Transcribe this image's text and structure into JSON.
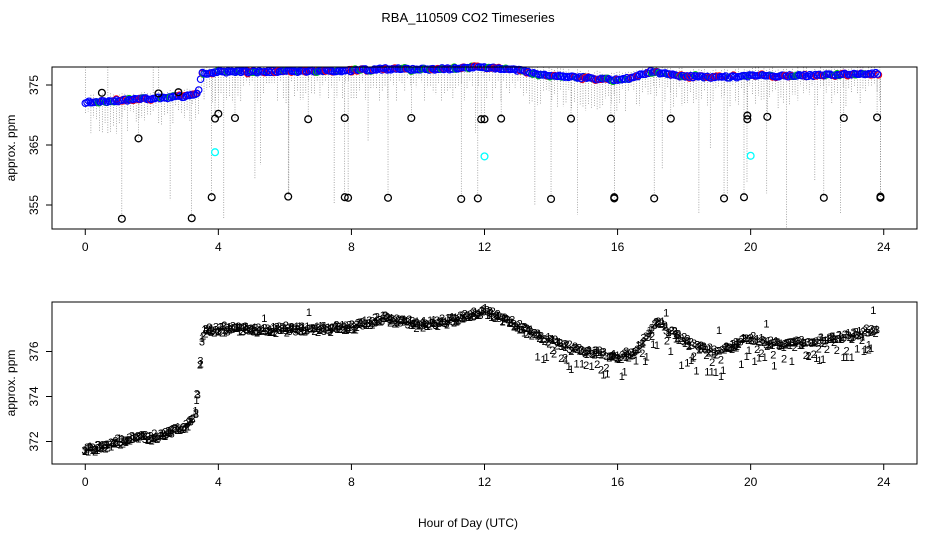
{
  "title": "RBA_110509  CO2 Timeseries",
  "colors": {
    "blue": "#0000ff",
    "red": "#ff0000",
    "green": "#00cc00",
    "cyan": "#00ffff",
    "black": "#000000"
  },
  "chart_data": [
    {
      "type": "scatter",
      "panel": "top",
      "ylabel": "approx. ppm",
      "xlim": [
        -1,
        25
      ],
      "ylim": [
        351,
        378
      ],
      "xticks": [
        0,
        4,
        8,
        12,
        16,
        20,
        24
      ],
      "yticks": [
        355,
        365,
        375
      ],
      "trend": [
        [
          0,
          372.1
        ],
        [
          0.5,
          372.2
        ],
        [
          1,
          372.4
        ],
        [
          1.5,
          372.6
        ],
        [
          2,
          372.7
        ],
        [
          2.5,
          372.9
        ],
        [
          3,
          373.1
        ],
        [
          3.2,
          373.3
        ],
        [
          3.4,
          373.9
        ],
        [
          3.5,
          376.9
        ],
        [
          4,
          377.2
        ],
        [
          5,
          377.2
        ],
        [
          6,
          377.3
        ],
        [
          7,
          377.3
        ],
        [
          8,
          377.4
        ],
        [
          9,
          377.7
        ],
        [
          10,
          377.6
        ],
        [
          11,
          377.7
        ],
        [
          12,
          378.0
        ],
        [
          12.5,
          377.7
        ],
        [
          13,
          377.5
        ],
        [
          14,
          376.5
        ],
        [
          15,
          376.2
        ],
        [
          16,
          375.8
        ],
        [
          16.5,
          376.3
        ],
        [
          17,
          377.2
        ],
        [
          17.5,
          376.9
        ],
        [
          18,
          376.4
        ],
        [
          19,
          376.3
        ],
        [
          19.8,
          376.4
        ],
        [
          20,
          376.6
        ],
        [
          21,
          376.5
        ],
        [
          22,
          376.6
        ],
        [
          23,
          376.8
        ],
        [
          23.8,
          376.9
        ]
      ],
      "outliers": [
        [
          0.5,
          373.7
        ],
        [
          1.1,
          352.7
        ],
        [
          1.6,
          366.1
        ],
        [
          2.2,
          373.6
        ],
        [
          2.8,
          373.8
        ],
        [
          3.2,
          352.8
        ],
        [
          3.8,
          356.3
        ],
        [
          3.9,
          369.4
        ],
        [
          4.0,
          370.2
        ],
        [
          4.5,
          369.5
        ],
        [
          6.1,
          356.4
        ],
        [
          6.7,
          369.3
        ],
        [
          7.8,
          369.5
        ],
        [
          7.8,
          356.3
        ],
        [
          7.9,
          356.2
        ],
        [
          9.1,
          356.2
        ],
        [
          9.8,
          369.5
        ],
        [
          11.3,
          356.0
        ],
        [
          11.9,
          369.3
        ],
        [
          11.8,
          356.1
        ],
        [
          12.0,
          369.3
        ],
        [
          12.5,
          369.4
        ],
        [
          14.0,
          356.0
        ],
        [
          14.6,
          369.4
        ],
        [
          15.8,
          369.4
        ],
        [
          15.9,
          356.1
        ],
        [
          15.9,
          356.3
        ],
        [
          17.1,
          356.1
        ],
        [
          17.6,
          369.4
        ],
        [
          19.2,
          356.1
        ],
        [
          19.8,
          356.3
        ],
        [
          19.9,
          369.3
        ],
        [
          19.9,
          369.9
        ],
        [
          20.5,
          369.7
        ],
        [
          22.2,
          356.2
        ],
        [
          22.8,
          369.5
        ],
        [
          23.8,
          369.6
        ],
        [
          23.9,
          356.2
        ],
        [
          23.9,
          356.4
        ]
      ],
      "cyan_points": [
        [
          3.9,
          363.8
        ],
        [
          12.0,
          363.1
        ],
        [
          20.0,
          363.2
        ]
      ]
    },
    {
      "type": "scatter",
      "panel": "bottom",
      "ylabel": "approx. ppm",
      "xlabel": "Hour of Day (UTC)",
      "xlim": [
        -1,
        25
      ],
      "ylim": [
        371,
        378.2
      ],
      "xticks": [
        0,
        4,
        8,
        12,
        16,
        20,
        24
      ],
      "yticks": [
        372,
        374,
        376
      ],
      "series_labels": [
        "1",
        "2",
        "3"
      ],
      "series_colors": [
        "#ff0000",
        "#00cc00",
        "#0000ff"
      ],
      "trend": [
        [
          0,
          371.6
        ],
        [
          0.5,
          371.8
        ],
        [
          1,
          372.0
        ],
        [
          1.5,
          372.2
        ],
        [
          2,
          372.2
        ],
        [
          2.5,
          372.4
        ],
        [
          3,
          372.7
        ],
        [
          3.2,
          372.9
        ],
        [
          3.35,
          373.5
        ],
        [
          3.45,
          375.5
        ],
        [
          3.55,
          376.9
        ],
        [
          4,
          377.0
        ],
        [
          5,
          377.0
        ],
        [
          6,
          377.0
        ],
        [
          7,
          377.0
        ],
        [
          8,
          377.1
        ],
        [
          9,
          377.5
        ],
        [
          10,
          377.2
        ],
        [
          11,
          377.4
        ],
        [
          12,
          377.8
        ],
        [
          12.5,
          377.5
        ],
        [
          13,
          377.1
        ],
        [
          14,
          376.5
        ],
        [
          15,
          376.0
        ],
        [
          15.5,
          376.0
        ],
        [
          16,
          375.7
        ],
        [
          16.5,
          376.0
        ],
        [
          17,
          377.0
        ],
        [
          17.3,
          377.3
        ],
        [
          17.5,
          377.0
        ],
        [
          18,
          376.5
        ],
        [
          18.5,
          376.2
        ],
        [
          19,
          376.0
        ],
        [
          19.5,
          376.3
        ],
        [
          20,
          376.6
        ],
        [
          20.5,
          376.4
        ],
        [
          21,
          376.3
        ],
        [
          22,
          376.5
        ],
        [
          23,
          376.7
        ],
        [
          23.8,
          377.0
        ]
      ]
    }
  ]
}
